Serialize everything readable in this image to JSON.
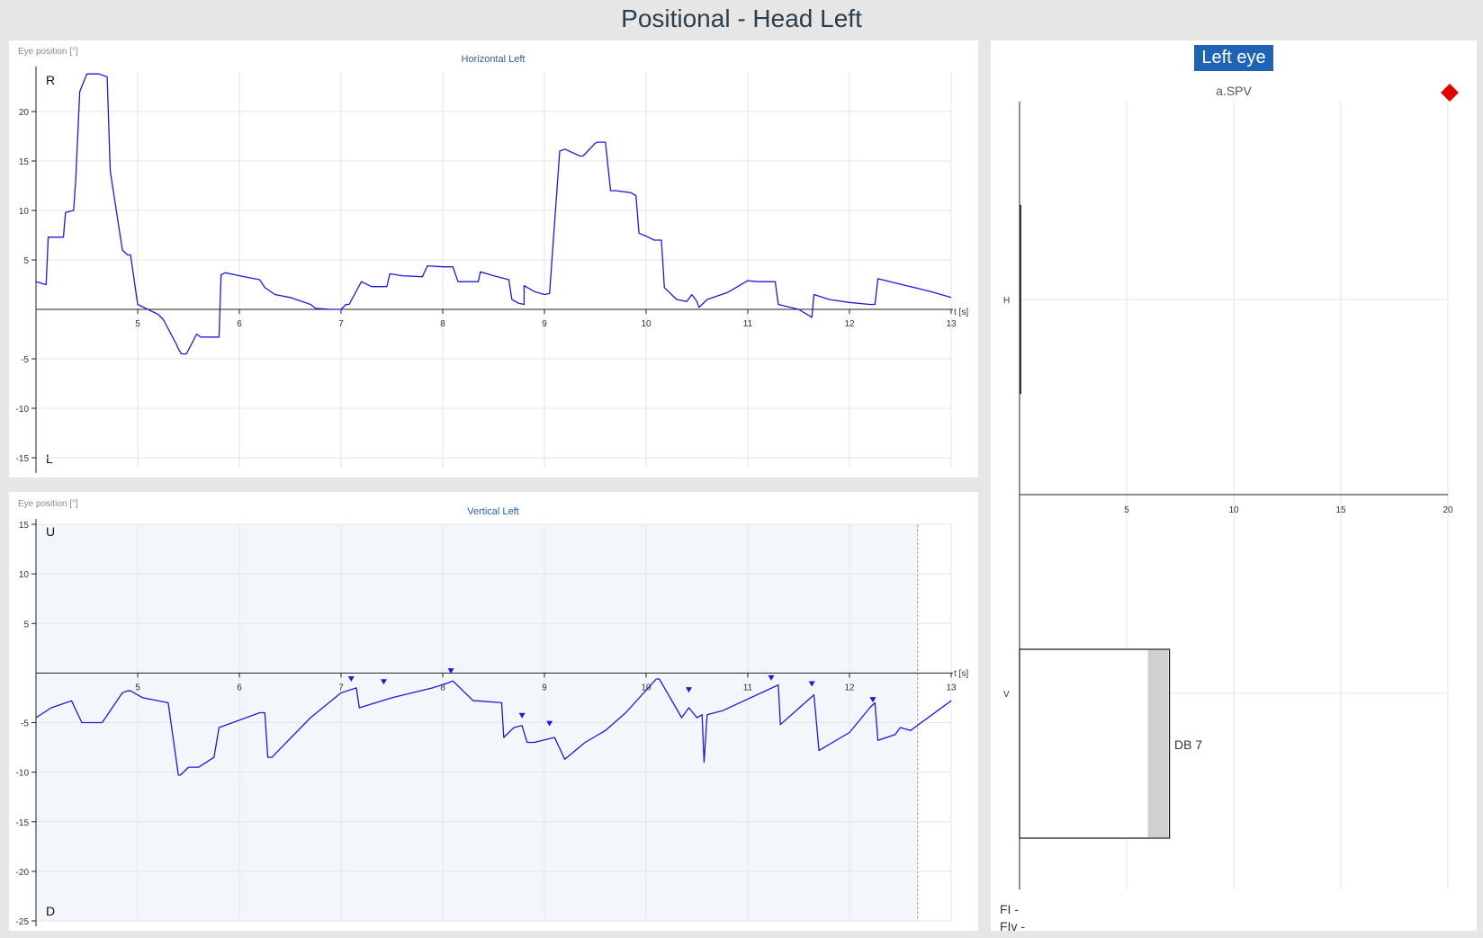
{
  "page": {
    "title": "Positional - Head Left"
  },
  "colors": {
    "trace": "#1a1adb",
    "grid": "#e4e4e4",
    "axis": "#222222",
    "highlight": "#f3f7fc",
    "marker": "#e00000",
    "badge": "#1f63b5",
    "db_fill": "#d0d0d0"
  },
  "chart_data": [
    {
      "type": "line",
      "title": "Horizontal Left",
      "ylabel": "Eye position [°]",
      "xlabel": "t [s]",
      "top_label": "R",
      "bottom_label": "L",
      "xlim": [
        4,
        13
      ],
      "ylim": [
        -16,
        24
      ],
      "xticks": [
        5,
        6,
        7,
        8,
        9,
        10,
        11,
        12,
        13
      ],
      "yticks": [
        -15,
        -10,
        -5,
        5,
        10,
        15,
        20
      ],
      "series": [
        {
          "x": [
            4.0,
            4.1,
            4.12,
            4.27,
            4.29,
            4.37,
            4.39,
            4.43,
            4.5,
            4.52,
            4.62,
            4.7,
            4.73,
            4.85,
            4.9,
            4.93,
            5.0,
            5.1,
            5.2,
            5.25,
            5.38,
            5.4,
            5.43,
            5.48,
            5.58,
            5.62,
            5.65,
            5.8,
            5.82,
            5.86,
            6.05,
            6.2,
            6.25,
            6.28,
            6.35,
            6.5,
            6.7,
            6.75,
            6.9,
            7.0,
            7.05,
            7.08,
            7.2,
            7.3,
            7.45,
            7.48,
            7.6,
            7.8,
            7.85,
            8.0,
            8.1,
            8.15,
            8.35,
            8.37,
            8.5,
            8.65,
            8.68,
            8.75,
            8.8,
            8.8,
            8.9,
            9.0,
            9.05,
            9.15,
            9.2,
            9.35,
            9.38,
            9.5,
            9.52,
            9.6,
            9.65,
            9.7,
            9.85,
            9.9,
            9.93,
            10.0,
            10.08,
            10.15,
            10.18,
            10.3,
            10.4,
            10.45,
            10.5,
            10.52,
            10.55,
            10.6,
            10.8,
            11.0,
            11.1,
            11.27,
            11.3,
            11.5,
            11.63,
            11.65,
            11.8,
            12.0,
            12.2,
            12.25,
            12.28,
            12.4,
            12.6,
            12.8,
            13.0
          ],
          "y": [
            2.8,
            2.5,
            7.3,
            7.3,
            9.8,
            10.0,
            13.0,
            22.0,
            23.8,
            23.8,
            23.8,
            23.5,
            14.0,
            6.0,
            5.5,
            5.5,
            0.5,
            0.0,
            -0.5,
            -1.0,
            -3.5,
            -4.0,
            -4.5,
            -4.5,
            -2.5,
            -2.8,
            -2.8,
            -2.8,
            3.5,
            3.7,
            3.3,
            3.0,
            2.2,
            2.0,
            1.5,
            1.2,
            0.5,
            0.1,
            0.0,
            0.0,
            0.5,
            0.5,
            2.8,
            2.3,
            2.3,
            3.6,
            3.4,
            3.3,
            4.4,
            4.3,
            4.3,
            2.8,
            2.8,
            3.8,
            3.4,
            3.0,
            1.0,
            0.6,
            0.5,
            2.4,
            1.8,
            1.5,
            1.6,
            16.0,
            16.2,
            15.5,
            15.5,
            16.8,
            16.9,
            16.9,
            12.0,
            12.0,
            11.8,
            11.5,
            7.7,
            7.4,
            7.0,
            7.0,
            2.2,
            1.0,
            0.8,
            1.5,
            0.8,
            0.2,
            0.5,
            1.0,
            1.7,
            2.9,
            2.8,
            2.8,
            0.5,
            0.0,
            -0.8,
            1.5,
            1.0,
            0.7,
            0.5,
            0.5,
            3.1,
            2.8,
            2.3,
            1.8,
            1.2
          ]
        }
      ]
    },
    {
      "type": "line",
      "title": "Vertical Left",
      "ylabel": "Eye position [°]",
      "xlabel": "t [s]",
      "top_label": "U",
      "bottom_label": "D",
      "xlim": [
        4,
        13
      ],
      "ylim": [
        -25,
        15
      ],
      "xticks": [
        5,
        6,
        7,
        8,
        9,
        10,
        11,
        12,
        13
      ],
      "yticks": [
        -25,
        -20,
        -15,
        -10,
        -5,
        5,
        10,
        15
      ],
      "highlight_range": [
        4,
        12.67
      ],
      "series": [
        {
          "x": [
            4.0,
            4.15,
            4.35,
            4.45,
            4.5,
            4.65,
            4.85,
            4.9,
            4.93,
            5.05,
            5.3,
            5.4,
            5.42,
            5.5,
            5.6,
            5.75,
            5.8,
            6.2,
            6.25,
            6.28,
            6.32,
            6.7,
            7.0,
            7.15,
            7.18,
            7.5,
            7.9,
            8.05,
            8.1,
            8.3,
            8.33,
            8.58,
            8.6,
            8.7,
            8.78,
            8.83,
            8.9,
            9.1,
            9.2,
            9.4,
            9.6,
            9.8,
            10.1,
            10.13,
            10.35,
            10.42,
            10.5,
            10.55,
            10.57,
            10.6,
            10.75,
            11.3,
            11.32,
            11.65,
            11.7,
            12.0,
            12.2,
            12.25,
            12.28,
            12.45,
            12.5,
            12.6,
            13.0
          ],
          "y": [
            -4.5,
            -3.5,
            -2.8,
            -5.0,
            -5.0,
            -5.0,
            -2.0,
            -1.8,
            -1.8,
            -2.5,
            -3.0,
            -10.3,
            -10.3,
            -9.5,
            -9.5,
            -8.5,
            -5.5,
            -4.0,
            -4.0,
            -8.5,
            -8.5,
            -4.5,
            -2.0,
            -1.5,
            -3.5,
            -2.5,
            -1.5,
            -1.0,
            -0.8,
            -2.8,
            -2.8,
            -3.0,
            -6.5,
            -5.5,
            -5.3,
            -7.0,
            -7.0,
            -6.5,
            -8.7,
            -7.0,
            -5.8,
            -4.0,
            -0.6,
            -0.6,
            -4.5,
            -3.5,
            -4.5,
            -4.2,
            -9.0,
            -4.2,
            -3.8,
            -1.2,
            -5.2,
            -2.2,
            -7.8,
            -6.0,
            -3.5,
            -3.0,
            -6.8,
            -6.2,
            -5.5,
            -5.8,
            -2.8
          ]
        }
      ],
      "markers": {
        "x": [
          7.1,
          7.42,
          8.08,
          8.78,
          9.05,
          10.42,
          11.23,
          11.63,
          12.23
        ],
        "y": [
          -0.6,
          -0.9,
          0.2,
          -4.3,
          -5.1,
          -1.7,
          -0.5,
          -1.1,
          -2.7
        ]
      }
    },
    {
      "type": "bar",
      "title": "a.SPV",
      "badge": "Left eye",
      "xlim": [
        0,
        20
      ],
      "xticks": [
        5,
        10,
        15,
        20
      ],
      "categories": [
        "H",
        "V"
      ],
      "values": [
        0,
        7
      ],
      "bar_label": "DB 7",
      "footer": [
        "FI -",
        "FIv -"
      ]
    }
  ]
}
